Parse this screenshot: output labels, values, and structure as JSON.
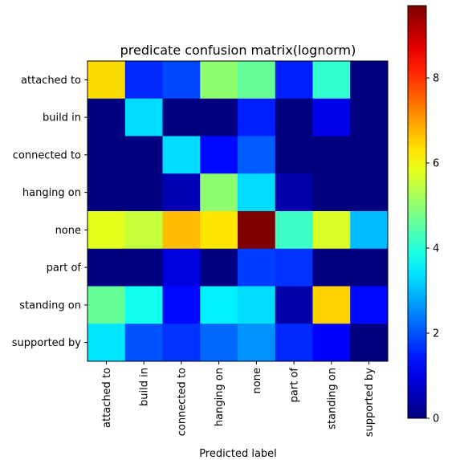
{
  "chart_data": {
    "type": "heatmap",
    "title": "predicate confusion matrix(lognorm)",
    "xlabel": "Predicted label",
    "ylabel": "",
    "row_labels": [
      "attached to",
      "build in",
      "connected to",
      "hanging on",
      "none",
      "part of",
      "standing on",
      "supported by"
    ],
    "col_labels": [
      "attached to",
      "build in",
      "connected to",
      "hanging on",
      "none",
      "part of",
      "standing on",
      "supported by"
    ],
    "values": [
      [
        6.4,
        1.6,
        1.9,
        5.0,
        4.6,
        1.5,
        4.1,
        0.0
      ],
      [
        0.0,
        3.3,
        0.0,
        0.0,
        1.5,
        0.0,
        1.0,
        0.0
      ],
      [
        0.0,
        0.0,
        3.3,
        1.3,
        2.1,
        0.0,
        0.0,
        0.0
      ],
      [
        0.0,
        0.0,
        0.5,
        5.0,
        3.3,
        0.4,
        0.0,
        0.0
      ],
      [
        5.8,
        5.5,
        6.7,
        6.3,
        9.7,
        4.2,
        5.7,
        3.0
      ],
      [
        0.0,
        0.0,
        0.9,
        0.0,
        1.8,
        1.7,
        0.0,
        0.0
      ],
      [
        4.6,
        3.8,
        1.3,
        3.5,
        3.3,
        0.4,
        6.5,
        1.3
      ],
      [
        3.4,
        2.0,
        1.7,
        2.2,
        2.6,
        1.6,
        1.2,
        0.0
      ]
    ],
    "colormap": "jet",
    "colorbar": {
      "range": [
        0,
        9.7
      ],
      "ticks": [
        0,
        2,
        4,
        6,
        8
      ],
      "tick_labels": [
        "0",
        "2",
        "4",
        "6",
        "8"
      ]
    }
  }
}
